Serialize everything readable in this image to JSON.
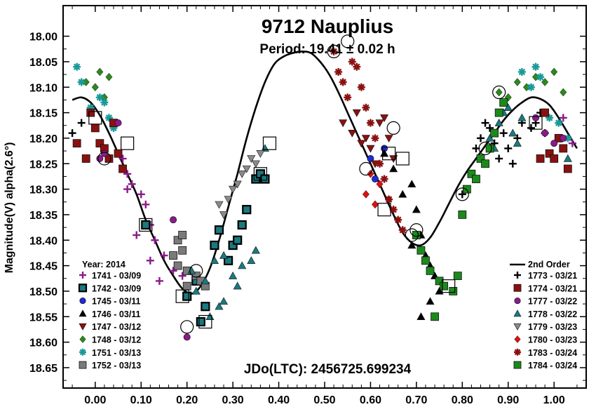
{
  "chart_data": {
    "type": "scatter",
    "title": "9712 Nauplius",
    "subtitle": "Period: 19.41 ± 0.02 h",
    "xlabel": "",
    "ylabel": "Magnitude(V) alpha(2.6°)",
    "footer": "JDo(LTC): 2456725.699234",
    "xlim": [
      -0.07,
      1.07
    ],
    "ylim": [
      18.69,
      17.94
    ],
    "y_inverted": true,
    "x_ticks": [
      "0.00",
      "0.10",
      "0.20",
      "0.30",
      "0.40",
      "0.50",
      "0.60",
      "0.70",
      "0.80",
      "0.90",
      "1.00"
    ],
    "y_ticks": [
      "18.00",
      "18.05",
      "18.10",
      "18.15",
      "18.20",
      "18.25",
      "18.30",
      "18.35",
      "18.40",
      "18.45",
      "18.50",
      "18.55",
      "18.60",
      "18.65"
    ],
    "legend_left_title": "Year: 2014",
    "legend_right_title": "2nd Order",
    "fit_curve": {
      "name": "2nd Order",
      "color": "#000000",
      "points": [
        [
          -0.05,
          18.125
        ],
        [
          -0.03,
          18.12
        ],
        [
          -0.01,
          18.13
        ],
        [
          0.01,
          18.155
        ],
        [
          0.03,
          18.19
        ],
        [
          0.05,
          18.23
        ],
        [
          0.07,
          18.27
        ],
        [
          0.09,
          18.31
        ],
        [
          0.11,
          18.36
        ],
        [
          0.13,
          18.4
        ],
        [
          0.15,
          18.44
        ],
        [
          0.17,
          18.47
        ],
        [
          0.19,
          18.495
        ],
        [
          0.21,
          18.505
        ],
        [
          0.23,
          18.49
        ],
        [
          0.25,
          18.455
        ],
        [
          0.27,
          18.4
        ],
        [
          0.29,
          18.335
        ],
        [
          0.31,
          18.27
        ],
        [
          0.33,
          18.2
        ],
        [
          0.35,
          18.14
        ],
        [
          0.37,
          18.09
        ],
        [
          0.39,
          18.055
        ],
        [
          0.41,
          18.04
        ],
        [
          0.43,
          18.033
        ],
        [
          0.45,
          18.03
        ],
        [
          0.47,
          18.033
        ],
        [
          0.49,
          18.05
        ],
        [
          0.51,
          18.075
        ],
        [
          0.53,
          18.11
        ],
        [
          0.55,
          18.15
        ],
        [
          0.57,
          18.19
        ],
        [
          0.59,
          18.23
        ],
        [
          0.61,
          18.27
        ],
        [
          0.63,
          18.31
        ],
        [
          0.65,
          18.35
        ],
        [
          0.67,
          18.385
        ],
        [
          0.69,
          18.405
        ],
        [
          0.71,
          18.41
        ],
        [
          0.73,
          18.395
        ],
        [
          0.75,
          18.365
        ],
        [
          0.77,
          18.33
        ],
        [
          0.79,
          18.295
        ],
        [
          0.81,
          18.265
        ],
        [
          0.83,
          18.24
        ],
        [
          0.85,
          18.215
        ],
        [
          0.87,
          18.19
        ],
        [
          0.89,
          18.165
        ],
        [
          0.91,
          18.145
        ],
        [
          0.93,
          18.13
        ],
        [
          0.95,
          18.12
        ],
        [
          0.97,
          18.123
        ],
        [
          0.99,
          18.135
        ],
        [
          1.01,
          18.16
        ],
        [
          1.03,
          18.19
        ],
        [
          1.05,
          18.22
        ]
      ]
    },
    "series": [
      {
        "name": "1741 - 03/09",
        "color": "#8b1a8b",
        "marker": "plus",
        "x": [
          0.06,
          0.07,
          0.08,
          0.1,
          0.11,
          0.12,
          0.13,
          0.15,
          0.17,
          0.19,
          0.09,
          0.07,
          1.02,
          1.04,
          0.14,
          0.12
        ],
        "y": [
          18.24,
          18.27,
          18.29,
          18.31,
          18.33,
          18.37,
          18.4,
          18.43,
          18.46,
          18.47,
          18.39,
          18.3,
          18.16,
          18.21,
          18.48,
          18.44
        ]
      },
      {
        "name": "1742 - 03/09",
        "color": "#1a7a80",
        "marker": "square-outlined",
        "x": [
          0.11,
          0.2,
          0.23,
          0.24,
          0.26,
          0.27,
          0.29,
          0.3,
          0.31,
          0.32,
          0.33,
          0.35,
          0.36,
          0.37,
          0.22
        ],
        "y": [
          18.37,
          18.51,
          18.56,
          18.53,
          18.41,
          18.38,
          18.44,
          18.41,
          18.4,
          18.37,
          18.34,
          18.28,
          18.27,
          18.28,
          18.48
        ],
        "outlined": [
          18.37
        ]
      },
      {
        "name": "1745 - 03/11",
        "color": "#1e2bd4",
        "marker": "circle",
        "x": [
          0.6,
          0.61,
          0.63
        ],
        "y": [
          18.24,
          18.28,
          18.22
        ]
      },
      {
        "name": "1746 - 03/11",
        "color": "#000000",
        "marker": "triangle-up",
        "x": [
          0.63,
          0.65,
          0.67,
          0.69,
          0.7,
          0.71,
          0.72,
          0.73,
          0.74,
          0.75,
          0.76,
          0.73,
          0.71,
          0.69
        ],
        "y": [
          18.23,
          18.26,
          18.31,
          18.29,
          18.34,
          18.39,
          18.43,
          18.45,
          18.47,
          18.5,
          18.49,
          18.52,
          18.55,
          18.41
        ],
        "outlined": [
          18.18
        ]
      },
      {
        "name": "1747 - 03/12",
        "color": "#8b1010",
        "marker": "triangle-down",
        "x": [
          0.54,
          0.56,
          0.57,
          0.58,
          0.59,
          0.6,
          0.61,
          0.62,
          0.63,
          0.64,
          0.65
        ],
        "y": [
          18.17,
          18.19,
          18.15,
          18.21,
          18.2,
          18.22,
          18.25,
          18.17,
          18.16,
          18.2,
          18.24
        ]
      },
      {
        "name": "1748 - 03/12",
        "color": "#2a8a1a",
        "marker": "diamond",
        "x": [
          -0.02,
          0.0,
          0.01,
          0.02,
          0.03,
          0.88,
          0.9,
          0.92,
          0.94,
          0.96,
          0.98,
          1.0,
          1.02
        ],
        "y": [
          18.09,
          18.1,
          18.07,
          18.12,
          18.08,
          18.11,
          18.12,
          18.09,
          18.1,
          18.08,
          18.09,
          18.07,
          18.11
        ]
      },
      {
        "name": "1751 - 03/13",
        "color": "#1a9a9a",
        "marker": "asterisk",
        "x": [
          -0.04,
          -0.03,
          -0.01,
          0.01,
          0.02,
          0.03,
          0.04,
          0.93,
          0.95,
          0.96,
          0.97,
          0.99,
          1.01,
          1.03
        ],
        "y": [
          18.06,
          18.09,
          18.14,
          18.12,
          18.13,
          18.16,
          18.18,
          18.07,
          18.1,
          18.06,
          18.08,
          18.16,
          18.17,
          18.2
        ]
      },
      {
        "name": "1752 - 03/13",
        "color": "#7a7a7a",
        "marker": "square",
        "x": [
          0.17,
          0.18,
          0.19,
          0.2,
          0.22,
          0.23,
          0.18,
          0.24,
          0.2,
          0.19
        ],
        "y": [
          18.43,
          18.4,
          18.39,
          18.46,
          18.47,
          18.48,
          18.45,
          18.49,
          18.49,
          18.42
        ]
      },
      {
        "name": "1773 - 03/21",
        "color": "#000000",
        "marker": "plus",
        "x": [
          -0.05,
          -0.03,
          0.8,
          0.82,
          0.83,
          0.84,
          0.85,
          0.86,
          0.87,
          0.88,
          0.89,
          0.9,
          0.91,
          0.92,
          0.93,
          0.95,
          0.96,
          0.97,
          0.98
        ],
        "y": [
          18.19,
          18.17,
          18.31,
          18.27,
          18.22,
          18.2,
          18.17,
          18.18,
          18.21,
          18.24,
          18.19,
          18.22,
          18.25,
          18.2,
          18.17,
          18.18,
          18.17,
          18.15,
          18.19
        ]
      },
      {
        "name": "1774 - 03/21",
        "color": "#8b1010",
        "marker": "square",
        "x": [
          -0.04,
          -0.02,
          -0.01,
          0.0,
          0.01,
          0.02,
          0.03,
          0.04,
          0.05,
          0.06,
          0.97,
          0.98,
          0.99,
          1.0,
          1.01,
          1.02,
          1.03
        ],
        "y": [
          18.21,
          18.24,
          18.15,
          18.18,
          18.21,
          18.22,
          18.24,
          18.17,
          18.23,
          18.26,
          18.24,
          18.15,
          18.23,
          18.24,
          18.2,
          18.22,
          18.26
        ]
      },
      {
        "name": "1777 - 03/22",
        "color": "#8b1a8b",
        "marker": "circle",
        "x": [
          0.01,
          0.02,
          0.05,
          0.17,
          0.2,
          0.96,
          0.98,
          1.0,
          1.02
        ],
        "y": [
          18.24,
          18.23,
          18.17,
          18.36,
          18.59,
          18.16,
          18.19,
          18.21,
          18.2
        ]
      },
      {
        "name": "1778 - 03/22",
        "color": "#1a7a80",
        "marker": "triangle-up",
        "x": [
          0.21,
          0.25,
          0.27,
          0.28,
          0.3,
          0.31,
          0.32,
          0.34,
          0.35,
          0.22,
          0.24,
          0.26,
          0.28,
          0.86,
          0.87,
          0.88,
          0.89,
          0.9,
          0.91,
          0.92,
          0.93,
          1.03,
          0.37
        ],
        "y": [
          18.46,
          18.55,
          18.53,
          18.52,
          18.47,
          18.49,
          18.45,
          18.44,
          18.42,
          18.5,
          18.48,
          18.44,
          18.43,
          18.2,
          18.22,
          18.17,
          18.15,
          18.14,
          18.19,
          18.21,
          18.16,
          18.24,
          18.22
        ],
        "outlined": [
          18.17,
          18.21,
          18.27,
          18.46,
          18.57
        ]
      },
      {
        "name": "1779 - 03/23",
        "color": "#8a8a8a",
        "marker": "triangle-down",
        "x": [
          0.27,
          0.28,
          0.29,
          0.3,
          0.31,
          0.32,
          0.33,
          0.34,
          0.35,
          0.36
        ],
        "y": [
          18.33,
          18.35,
          18.32,
          18.3,
          18.29,
          18.27,
          18.26,
          18.24,
          18.25,
          18.23
        ]
      },
      {
        "name": "1780 - 03/23",
        "color": "#e01010",
        "marker": "diamond",
        "x": [
          0.59,
          0.6,
          0.61,
          0.62,
          0.64
        ],
        "y": [
          18.31,
          18.27,
          18.33,
          18.29,
          18.32
        ]
      },
      {
        "name": "1783 - 03/24",
        "color": "#8b1010",
        "marker": "asterisk",
        "x": [
          0.52,
          0.53,
          0.54,
          0.55,
          0.56,
          0.57,
          0.58,
          0.59,
          0.6,
          0.61,
          0.62,
          0.63,
          0.64,
          0.65,
          0.66,
          0.67
        ],
        "y": [
          18.03,
          18.07,
          18.09,
          18.12,
          18.05,
          18.06,
          18.1,
          18.14,
          18.17,
          18.2,
          18.25,
          18.28,
          18.32,
          18.34,
          18.36,
          18.38
        ],
        "outlined": [
          18.03,
          18.01,
          18.34,
          18.38
        ]
      },
      {
        "name": "1784 - 03/24",
        "color": "#1a8a1a",
        "marker": "square",
        "x": [
          0.7,
          0.71,
          0.72,
          0.73,
          0.74,
          0.75,
          0.76,
          0.78,
          0.79,
          0.8,
          0.81,
          0.82,
          0.83,
          0.84,
          0.85,
          0.86,
          0.87,
          0.88,
          0.89
        ],
        "y": [
          18.39,
          18.42,
          18.44,
          18.46,
          18.55,
          18.48,
          18.49,
          18.5,
          18.47,
          18.35,
          18.3,
          18.27,
          18.28,
          18.24,
          18.25,
          18.22,
          18.19,
          18.15,
          18.13
        ]
      }
    ]
  }
}
